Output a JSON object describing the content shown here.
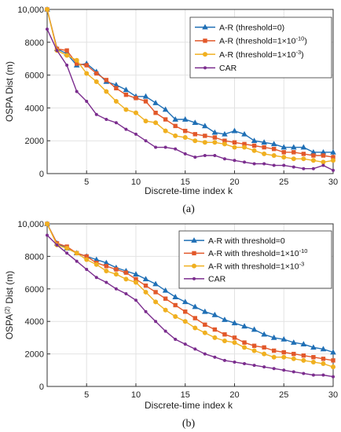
{
  "chart_data": [
    {
      "type": "line",
      "panel": "a",
      "caption": "(a)",
      "xlabel": "Discrete-time index k",
      "ylabel": "OSPA Dist (m)",
      "ylabel_sup": "",
      "ylabel_after": "",
      "xlim": [
        1,
        30
      ],
      "ylim": [
        0,
        10000
      ],
      "xticks": [
        5,
        10,
        15,
        20,
        25,
        30
      ],
      "yticks": [
        0,
        2000,
        4000,
        6000,
        8000,
        10000
      ],
      "ytick_labels": [
        "0",
        "2000",
        "4000",
        "6000",
        "8000",
        "10,000"
      ],
      "grid": true,
      "legend_position": "top-right",
      "x": [
        1,
        2,
        3,
        4,
        5,
        6,
        7,
        8,
        9,
        10,
        11,
        12,
        13,
        14,
        15,
        16,
        17,
        18,
        19,
        20,
        21,
        22,
        23,
        24,
        25,
        26,
        27,
        28,
        29,
        30
      ],
      "series": [
        {
          "name": "A-R (threshold=0)",
          "legend": [
            "A-R (threshold=0)"
          ],
          "color": "#1f6fb5",
          "marker": "triangle",
          "values": [
            10000,
            7600,
            7300,
            6600,
            6700,
            6200,
            5600,
            5400,
            5100,
            4700,
            4700,
            4300,
            3900,
            3300,
            3300,
            3100,
            2900,
            2500,
            2400,
            2600,
            2400,
            2000,
            1900,
            1800,
            1600,
            1600,
            1600,
            1300,
            1300,
            1300
          ]
        },
        {
          "name": "A-R (threshold=1×10-10)",
          "legend": [
            "A-R (threshold=1×10",
            "-10",
            ")"
          ],
          "color": "#e2582a",
          "marker": "square",
          "values": [
            10000,
            7600,
            7500,
            6700,
            6600,
            6100,
            5700,
            5200,
            4800,
            4600,
            4400,
            3700,
            3300,
            2900,
            2600,
            2400,
            2300,
            2200,
            2000,
            1900,
            1800,
            1700,
            1600,
            1500,
            1300,
            1300,
            1200,
            1100,
            1100,
            1000
          ]
        },
        {
          "name": "A-R (threshold=1×10-3)",
          "legend": [
            "A-R (threshold=1×10",
            "-3",
            ")"
          ],
          "color": "#f0b020",
          "marker": "circle",
          "values": [
            10000,
            7500,
            7200,
            6900,
            6100,
            5600,
            5000,
            4400,
            3900,
            3700,
            3200,
            3100,
            2600,
            2300,
            2200,
            2000,
            1900,
            1900,
            1800,
            1600,
            1600,
            1400,
            1200,
            1100,
            1000,
            900,
            900,
            800,
            700,
            800
          ]
        },
        {
          "name": "CAR",
          "legend": [
            "CAR"
          ],
          "color": "#7b2d8e",
          "marker": "dot",
          "values": [
            8800,
            7500,
            6600,
            5000,
            4400,
            3600,
            3300,
            3100,
            2700,
            2400,
            2000,
            1600,
            1600,
            1500,
            1200,
            1000,
            1100,
            1100,
            900,
            800,
            700,
            600,
            600,
            500,
            500,
            400,
            300,
            300,
            500,
            200
          ]
        }
      ]
    },
    {
      "type": "line",
      "panel": "b",
      "caption": "(b)",
      "xlabel": "Discrete-time index k",
      "ylabel": "OSPA",
      "ylabel_sup": "(2)",
      "ylabel_after": " Dist (m)",
      "xlim": [
        1,
        30
      ],
      "ylim": [
        0,
        10000
      ],
      "xticks": [
        5,
        10,
        15,
        20,
        25,
        30
      ],
      "yticks": [
        0,
        2000,
        4000,
        6000,
        8000,
        10000
      ],
      "ytick_labels": [
        "0",
        "2000",
        "4000",
        "6000",
        "8000",
        "10,000"
      ],
      "grid": true,
      "legend_position": "top-right",
      "x": [
        1,
        2,
        3,
        4,
        5,
        6,
        7,
        8,
        9,
        10,
        11,
        12,
        13,
        14,
        15,
        16,
        17,
        18,
        19,
        20,
        21,
        22,
        23,
        24,
        25,
        26,
        27,
        28,
        29,
        30
      ],
      "series": [
        {
          "name": "A-R with threshold=0",
          "legend": [
            "A-R with threshold=0"
          ],
          "color": "#1f6fb5",
          "marker": "triangle",
          "values": [
            10000,
            8800,
            8500,
            8200,
            8000,
            7800,
            7600,
            7300,
            7100,
            6900,
            6600,
            6300,
            5900,
            5500,
            5200,
            4900,
            4600,
            4400,
            4100,
            3900,
            3700,
            3500,
            3200,
            3000,
            2900,
            2700,
            2600,
            2400,
            2300,
            2100
          ]
        },
        {
          "name": "A-R with threshold=1×10-10",
          "legend": [
            "A-R with threshold=1×10",
            "-10",
            ""
          ],
          "color": "#e2582a",
          "marker": "square",
          "values": [
            10000,
            8800,
            8600,
            8200,
            8000,
            7600,
            7400,
            7200,
            7000,
            6600,
            6200,
            5800,
            5400,
            5000,
            4600,
            4200,
            3800,
            3500,
            3200,
            3000,
            2700,
            2500,
            2400,
            2200,
            2100,
            2000,
            1900,
            1800,
            1700,
            1600
          ]
        },
        {
          "name": "A-R with threshold=1×10-3",
          "legend": [
            "A-R with threshold=1×10",
            "-3",
            ""
          ],
          "color": "#f0b020",
          "marker": "circle",
          "values": [
            10000,
            8700,
            8500,
            8200,
            7800,
            7500,
            7100,
            6900,
            6600,
            6400,
            5800,
            5200,
            4700,
            4300,
            4000,
            3600,
            3300,
            3000,
            2800,
            2700,
            2400,
            2200,
            2000,
            1800,
            1800,
            1700,
            1600,
            1500,
            1400,
            1200
          ]
        },
        {
          "name": "CAR",
          "legend": [
            "CAR"
          ],
          "color": "#7b2d8e",
          "marker": "dot",
          "values": [
            9300,
            8700,
            8200,
            7700,
            7200,
            6700,
            6400,
            6000,
            5700,
            5300,
            4600,
            4000,
            3400,
            2900,
            2600,
            2300,
            2000,
            1800,
            1600,
            1500,
            1400,
            1300,
            1200,
            1100,
            1000,
            900,
            800,
            700,
            700,
            600
          ]
        }
      ]
    }
  ]
}
